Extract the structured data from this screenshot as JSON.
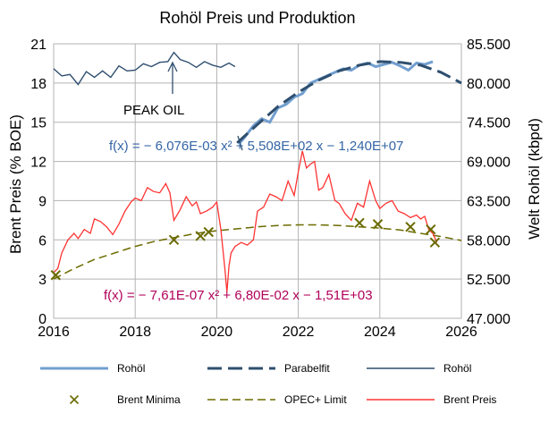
{
  "chart_data": {
    "type": "line",
    "title": "Rohöl Preis und Produktion",
    "ylabel_left": "Brent Preis  (% BOE)",
    "ylabel_right": "Welt Rohöl (kbpd)",
    "x_range": [
      2016,
      2026
    ],
    "y_left_range": [
      0,
      21
    ],
    "y_right_range": [
      47000,
      85500
    ],
    "x_ticks": [
      "2016",
      "2018",
      "2020",
      "2022",
      "2024",
      "2026"
    ],
    "y_left_ticks": [
      "0",
      "3",
      "6",
      "9",
      "12",
      "15",
      "18",
      "21"
    ],
    "y_right_ticks": [
      "47.000",
      "52.500",
      "58.000",
      "63.500",
      "69.000",
      "74.500",
      "80.000",
      "85.500"
    ],
    "grid": true,
    "annotations": {
      "peak_oil": "PEAK OIL",
      "fit_production": "f(x) = − 6,076E-03 x² + 5,508E+02 x − 1,240E+07",
      "fit_price": "f(x) = − 7,61E-07 x² + 6,80E-02 x − 1,51E+03",
      "peak_oil_x": 2018.95
    },
    "legend": {
      "placement": "bottom",
      "items": [
        {
          "label": "Rohöl",
          "color": "#729fcf",
          "style": "thick-line"
        },
        {
          "label": "Parabelfit",
          "color": "#2f4f6f",
          "style": "dashed"
        },
        {
          "label": "Rohöl",
          "color": "#2f4f6f",
          "style": "thin-line"
        },
        {
          "label": "Brent Minima",
          "color": "#6b6b00",
          "style": "x-marker"
        },
        {
          "label": "OPEC+ Limit",
          "color": "#6b6b00",
          "style": "dashed"
        },
        {
          "label": "Brent Preis",
          "color": "#ff3333",
          "style": "line"
        }
      ]
    },
    "series": [
      {
        "name": "Rohöl",
        "axis": "right",
        "x": [
          2016.0,
          2016.2,
          2016.4,
          2016.6,
          2016.8,
          2017.0,
          2017.2,
          2017.4,
          2017.6,
          2017.8,
          2018.0,
          2018.2,
          2018.4,
          2018.6,
          2018.8,
          2018.95,
          2019.1,
          2019.3,
          2019.5,
          2019.7,
          2019.9,
          2020.1,
          2020.3,
          2020.45
        ],
        "values": [
          82000,
          81000,
          81200,
          79800,
          81600,
          80800,
          81700,
          80800,
          82400,
          81700,
          81800,
          82700,
          82300,
          82900,
          83000,
          84300,
          83300,
          82900,
          82200,
          83000,
          82500,
          82200,
          82800,
          82300
        ]
      },
      {
        "name": "Rohöl",
        "axis": "right",
        "x": [
          2020.55,
          2020.7,
          2020.9,
          2021.1,
          2021.3,
          2021.5,
          2021.7,
          2021.9,
          2022.1,
          2022.3,
          2022.5,
          2022.7,
          2022.9,
          2023.1,
          2023.3,
          2023.5,
          2023.7,
          2023.9,
          2024.1,
          2024.3,
          2024.5,
          2024.7,
          2024.9,
          2025.1,
          2025.3
        ],
        "values": [
          71500,
          72500,
          74000,
          75000,
          74500,
          76500,
          77000,
          78000,
          78500,
          80000,
          80500,
          81000,
          81500,
          82000,
          81800,
          82500,
          82800,
          82300,
          82600,
          82900,
          82400,
          81800,
          82800,
          82600,
          83000
        ]
      },
      {
        "name": "Parabelfit",
        "axis": "right",
        "x": [
          2020.5,
          2021.0,
          2021.5,
          2022.0,
          2022.5,
          2023.0,
          2023.5,
          2024.0,
          2024.5,
          2025.0,
          2025.5,
          2026.0
        ],
        "values": [
          71600,
          74200,
          76700,
          78700,
          80400,
          81700,
          82500,
          83000,
          82900,
          82500,
          81500,
          80000
        ]
      },
      {
        "name": "OPEC+ Limit",
        "axis": "left",
        "x": [
          2016.0,
          2016.5,
          2017.0,
          2017.5,
          2018.0,
          2018.5,
          2019.0,
          2019.5,
          2020.0,
          2020.5,
          2021.0,
          2021.5,
          2022.0,
          2022.5,
          2023.0,
          2023.5,
          2024.0,
          2024.5,
          2025.0,
          2025.5,
          2026.0
        ],
        "values": [
          3.0,
          3.8,
          4.5,
          5.0,
          5.5,
          5.9,
          6.2,
          6.5,
          6.7,
          6.85,
          7.0,
          7.1,
          7.15,
          7.15,
          7.1,
          7.0,
          6.9,
          6.75,
          6.5,
          6.25,
          5.95
        ]
      },
      {
        "name": "Brent Minima",
        "axis": "left",
        "x": [
          2016.05,
          2018.95,
          2019.6,
          2019.8,
          2023.5,
          2023.95,
          2024.75,
          2025.25,
          2025.35
        ],
        "values": [
          3.3,
          6.0,
          6.3,
          6.6,
          7.3,
          7.2,
          7.0,
          6.8,
          5.8
        ]
      },
      {
        "name": "Brent Preis",
        "axis": "left",
        "x": [
          2016.0,
          2016.1,
          2016.2,
          2016.35,
          2016.5,
          2016.6,
          2016.75,
          2016.9,
          2017.0,
          2017.15,
          2017.3,
          2017.45,
          2017.6,
          2017.75,
          2017.9,
          2018.0,
          2018.15,
          2018.3,
          2018.45,
          2018.6,
          2018.75,
          2018.85,
          2018.95,
          2019.1,
          2019.25,
          2019.4,
          2019.5,
          2019.6,
          2019.75,
          2019.9,
          2020.0,
          2020.1,
          2020.2,
          2020.25,
          2020.3,
          2020.35,
          2020.45,
          2020.6,
          2020.75,
          2020.9,
          2021.0,
          2021.15,
          2021.3,
          2021.45,
          2021.6,
          2021.75,
          2021.9,
          2022.0,
          2022.1,
          2022.2,
          2022.3,
          2022.4,
          2022.5,
          2022.6,
          2022.75,
          2022.9,
          2023.0,
          2023.15,
          2023.3,
          2023.45,
          2023.6,
          2023.75,
          2023.9,
          2024.0,
          2024.15,
          2024.3,
          2024.45,
          2024.6,
          2024.75,
          2024.9,
          2025.0,
          2025.1,
          2025.2,
          2025.3,
          2025.4
        ],
        "values": [
          3.5,
          3.8,
          5.0,
          6.0,
          6.5,
          6.1,
          6.8,
          6.5,
          7.6,
          7.4,
          7.0,
          6.4,
          7.2,
          8.2,
          8.9,
          9.2,
          9.0,
          10.0,
          9.7,
          9.6,
          10.3,
          9.6,
          7.5,
          8.3,
          9.3,
          8.6,
          8.9,
          8.0,
          8.2,
          8.5,
          8.9,
          6.8,
          3.8,
          2.0,
          4.0,
          5.0,
          5.5,
          5.8,
          5.6,
          6.0,
          8.2,
          8.5,
          9.5,
          9.3,
          9.0,
          10.5,
          9.4,
          11.2,
          12.8,
          11.5,
          11.8,
          12.0,
          9.8,
          10.0,
          11.0,
          9.0,
          8.8,
          8.0,
          7.5,
          8.8,
          8.5,
          10.5,
          9.0,
          8.4,
          8.8,
          9.0,
          8.2,
          8.0,
          7.7,
          7.9,
          7.6,
          7.8,
          6.8,
          6.5,
          5.8
        ]
      }
    ]
  }
}
